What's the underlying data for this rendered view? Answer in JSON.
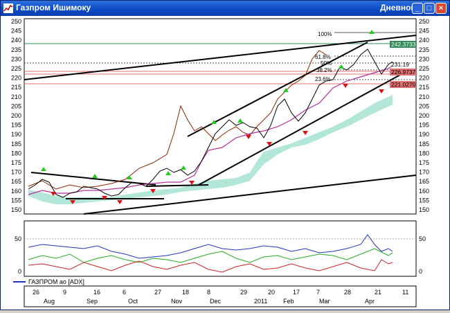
{
  "window": {
    "title": "Газпром Ишимоку",
    "mode": "Дневной",
    "buttons": [
      "_",
      "□",
      "×"
    ]
  },
  "main_chart": {
    "y_ticks": [
      "250",
      "245",
      "240",
      "235",
      "230",
      "225",
      "220",
      "215",
      "210",
      "205",
      "200",
      "195",
      "190",
      "185",
      "180",
      "175",
      "170",
      "165",
      "160",
      "155",
      "150"
    ],
    "fib_labels": {
      "f100": "100%",
      "f618": "61.8%",
      "f50": "50%",
      "f382": "38.2%",
      "f236": "23.6%"
    },
    "price_tags": [
      {
        "text": "242.3733",
        "color": "#2e8b57"
      },
      {
        "text": "231.19",
        "color": "#ffffff"
      },
      {
        "text": "226.9737",
        "color": "#e07070"
      },
      {
        "text": "221.0270",
        "color": "#e07070"
      }
    ]
  },
  "indicator": {
    "label": "ГАЗПРОМ ао [ADX]",
    "y_left": [
      "50",
      "0"
    ],
    "y_right": [
      "50",
      "0"
    ]
  },
  "x_axis": {
    "days": [
      "26",
      "9",
      "16",
      "6",
      "27",
      "18",
      "8",
      "29",
      "20",
      "17",
      "7",
      "28",
      "21",
      "11"
    ],
    "months": [
      "Aug",
      "Sep",
      "Oct",
      "Nov",
      "Dec",
      "2011",
      "Feb",
      "Mar",
      "Apr"
    ]
  }
}
